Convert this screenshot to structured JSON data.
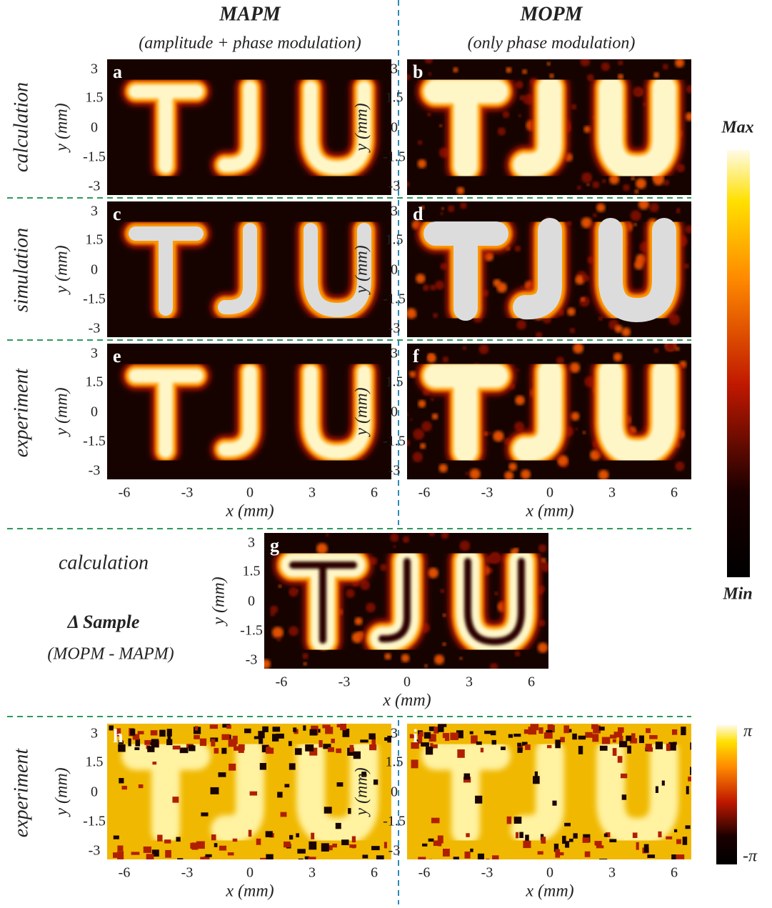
{
  "columns": [
    {
      "title": "MAPM",
      "subtitle": "(amplitude + phase modulation)"
    },
    {
      "title": "MOPM",
      "subtitle": "(only phase modulation)"
    }
  ],
  "rows": [
    "calculation",
    "simulation",
    "experiment"
  ],
  "panels": [
    {
      "label": "a"
    },
    {
      "label": "b"
    },
    {
      "label": "c"
    },
    {
      "label": "d"
    },
    {
      "label": "e"
    },
    {
      "label": "f"
    },
    {
      "label": "g"
    },
    {
      "label": "h"
    },
    {
      "label": "i"
    }
  ],
  "axes": {
    "x_label": "x (mm)",
    "y_label": "y (mm)",
    "x_ticks": [
      "-6",
      "-3",
      "0",
      "3",
      "6"
    ],
    "y_ticks": [
      "3",
      "1.5",
      "0",
      "-1.5",
      "-3"
    ]
  },
  "difference": {
    "row": "calculation",
    "title": "Δ Sample",
    "subtitle": "(MOPM - MAPM)"
  },
  "phase_row": "experiment",
  "colorbars": {
    "intensity": {
      "max": "Max",
      "min": "Min"
    },
    "phase": {
      "max": "π",
      "min": "-π"
    }
  }
}
